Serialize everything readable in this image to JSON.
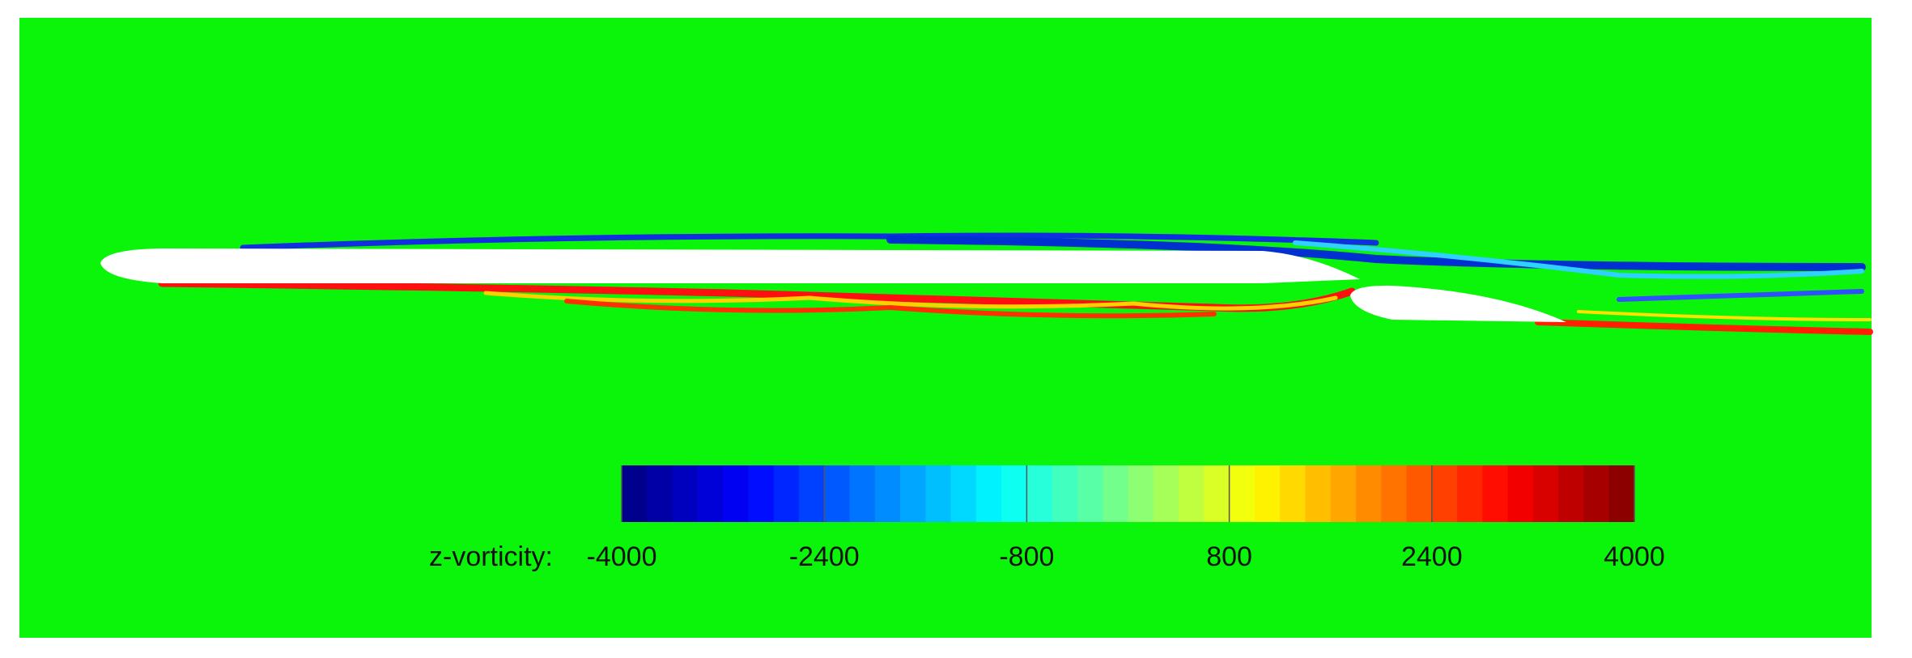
{
  "chart_data": {
    "type": "contour",
    "colorbar_label": "z-vorticity:",
    "colorbar_lim": [
      -4000,
      4000
    ],
    "colorbar_ticks": [
      -4000,
      -2400,
      -800,
      800,
      2400,
      4000
    ],
    "colormap": "jet",
    "colorbar_levels": 40,
    "field_color": "#0af50a"
  }
}
